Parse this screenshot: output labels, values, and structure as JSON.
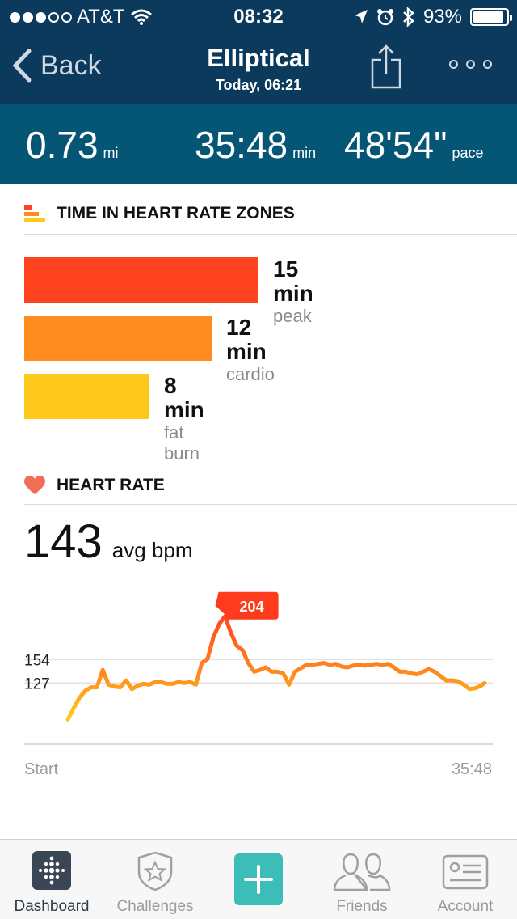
{
  "status": {
    "carrier": "AT&T",
    "time": "08:32",
    "battery": "93%"
  },
  "nav": {
    "back_label": "Back",
    "title": "Elliptical",
    "subtitle": "Today, 06:21"
  },
  "stats": [
    {
      "value": "0.73",
      "unit": "mi"
    },
    {
      "value": "35:48",
      "unit": "min"
    },
    {
      "value": "48'54\"",
      "unit": "pace"
    }
  ],
  "zones": {
    "header": "TIME IN HEART RATE ZONES",
    "items": [
      {
        "minutes": 15,
        "min_label": "15 min",
        "name": "peak",
        "color": "#ff431e"
      },
      {
        "minutes": 12,
        "min_label": "12 min",
        "name": "cardio",
        "color": "#ff8c1f"
      },
      {
        "minutes": 8,
        "min_label": "8 min",
        "name": "fat burn",
        "color": "#ffc91b"
      }
    ]
  },
  "heart": {
    "header": "HEART RATE",
    "avg_value": "143",
    "avg_unit": "avg bpm",
    "start_label": "Start",
    "end_label": "35:48"
  },
  "chart_data": {
    "type": "line",
    "ylabel_ticks": [
      154,
      127
    ],
    "peak_label": "204",
    "peak_value": 204,
    "ylim": [
      75,
      215
    ],
    "xlim": [
      0,
      35.8
    ],
    "x": [
      0,
      0.5,
      1,
      1.5,
      2,
      2.5,
      3,
      3.5,
      4,
      4.5,
      5,
      5.5,
      6,
      6.5,
      7,
      7.5,
      8,
      8.5,
      9,
      9.5,
      10,
      10.5,
      11,
      11.5,
      12,
      12.5,
      13,
      13.5,
      14,
      14.5,
      15,
      15.5,
      16,
      16.5,
      17,
      17.5,
      18,
      18.5,
      19,
      19.5,
      20,
      20.5,
      21,
      21.5,
      22,
      22.5,
      23,
      23.5,
      24,
      24.5,
      25,
      25.5,
      26,
      26.5,
      27,
      27.5,
      28,
      28.5,
      29,
      29.5,
      30,
      30.5,
      31,
      31.5,
      32,
      32.5,
      33,
      33.5,
      34,
      34.5,
      35,
      35.5,
      35.8
    ],
    "y": [
      85,
      98,
      110,
      118,
      122,
      122,
      142,
      125,
      123,
      122,
      130,
      120,
      124,
      126,
      125,
      128,
      128,
      126,
      126,
      128,
      127,
      128,
      125,
      150,
      155,
      180,
      195,
      204,
      185,
      170,
      165,
      150,
      140,
      142,
      145,
      140,
      140,
      138,
      125,
      140,
      144,
      148,
      148,
      149,
      150,
      148,
      149,
      146,
      145,
      147,
      148,
      147,
      148,
      149,
      148,
      149,
      145,
      140,
      140,
      138,
      137,
      140,
      143,
      140,
      135,
      130,
      130,
      129,
      125,
      120,
      121,
      124,
      127
    ],
    "colors": {
      "low": "#3cc9b4",
      "mid": "#ffc91b",
      "high": "#ff8c1f",
      "peak": "#ff3b1e"
    }
  },
  "tabs": [
    {
      "label": "Dashboard",
      "icon": "fitbit-dots-icon",
      "active": true
    },
    {
      "label": "Challenges",
      "icon": "star-badge-icon",
      "active": false
    },
    {
      "label": "",
      "icon": "plus-icon",
      "active": false
    },
    {
      "label": "Friends",
      "icon": "friends-icon",
      "active": false
    },
    {
      "label": "Account",
      "icon": "id-card-icon",
      "active": false
    }
  ]
}
